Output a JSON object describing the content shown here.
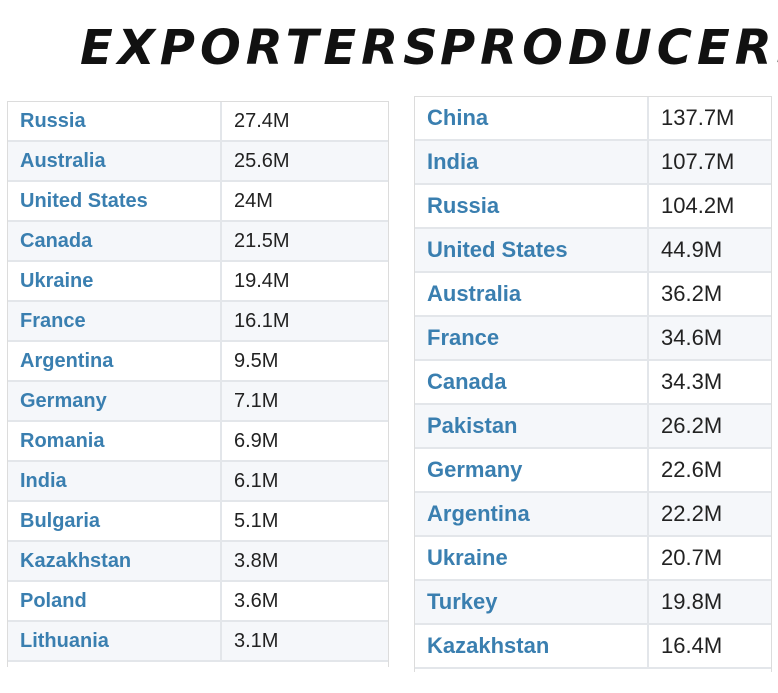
{
  "chart_data": [
    {
      "type": "table",
      "title": "EXPORTERS",
      "rows": [
        {
          "country": "Russia",
          "value": "27.4M"
        },
        {
          "country": "Australia",
          "value": "25.6M"
        },
        {
          "country": "United States",
          "value": "24M"
        },
        {
          "country": "Canada",
          "value": "21.5M"
        },
        {
          "country": "Ukraine",
          "value": "19.4M"
        },
        {
          "country": "France",
          "value": "16.1M"
        },
        {
          "country": "Argentina",
          "value": "9.5M"
        },
        {
          "country": "Germany",
          "value": "7.1M"
        },
        {
          "country": "Romania",
          "value": "6.9M"
        },
        {
          "country": "India",
          "value": "6.1M"
        },
        {
          "country": "Bulgaria",
          "value": "5.1M"
        },
        {
          "country": "Kazakhstan",
          "value": "3.8M"
        },
        {
          "country": "Poland",
          "value": "3.6M"
        },
        {
          "country": "Lithuania",
          "value": "3.1M"
        }
      ]
    },
    {
      "type": "table",
      "title": "PRODUCERS",
      "rows": [
        {
          "country": "China",
          "value": "137.7M"
        },
        {
          "country": "India",
          "value": "107.7M"
        },
        {
          "country": "Russia",
          "value": "104.2M"
        },
        {
          "country": "United States",
          "value": "44.9M"
        },
        {
          "country": "Australia",
          "value": "36.2M"
        },
        {
          "country": "France",
          "value": "34.6M"
        },
        {
          "country": "Canada",
          "value": "34.3M"
        },
        {
          "country": "Pakistan",
          "value": "26.2M"
        },
        {
          "country": "Germany",
          "value": "22.6M"
        },
        {
          "country": "Argentina",
          "value": "22.2M"
        },
        {
          "country": "Ukraine",
          "value": "20.7M"
        },
        {
          "country": "Turkey",
          "value": "19.8M"
        },
        {
          "country": "Kazakhstan",
          "value": "16.4M"
        }
      ]
    }
  ],
  "colors": {
    "country_text": "#3a7fb0",
    "value_text": "#222222",
    "heading_text": "#111111",
    "row_stripe": "#f5f7fa",
    "row_border": "#e3e6ea"
  }
}
